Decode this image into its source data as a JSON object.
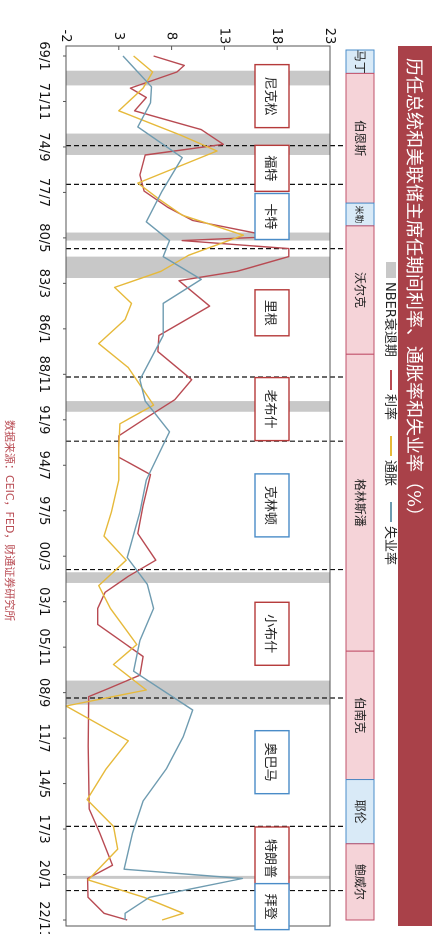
{
  "title": "历任总统和美联储主席任期间利率、通胀率和失业率（%）",
  "legend": [
    {
      "label": "NBER衰退期",
      "color": "#c8c8c8"
    },
    {
      "label": "利率",
      "color": "#b84a52"
    },
    {
      "label": "通胀",
      "color": "#e6b93a"
    },
    {
      "label": "失业率",
      "color": "#6e9bb0"
    }
  ],
  "source": "数据来源：CEIC，FED，财通证券研究所",
  "colors": {
    "rate": "#b84a52",
    "inflation": "#e6b93a",
    "unemployment": "#6e9bb0",
    "recession": "#c8c8c8",
    "title_bar": "#a94149",
    "box_border_red": "#b53a3a",
    "box_border_blue": "#4a8cc8"
  },
  "fed_chairs": [
    {
      "name": "马丁",
      "start": "1969-01",
      "end": "1970-02",
      "color": "blue"
    },
    {
      "name": "伯恩斯",
      "start": "1970-02",
      "end": "1978-03",
      "color": "pink"
    },
    {
      "name": "米勒",
      "start": "1978-03",
      "end": "1979-08",
      "color": "blue"
    },
    {
      "name": "沃尔克",
      "start": "1979-08",
      "end": "1987-08",
      "color": "pink"
    },
    {
      "name": "格林斯潘",
      "start": "1987-08",
      "end": "2006-02",
      "color": "pink"
    },
    {
      "name": "伯南克",
      "start": "2006-02",
      "end": "2014-02",
      "color": "pink"
    },
    {
      "name": "耶伦",
      "start": "2014-02",
      "end": "2018-02",
      "color": "blue"
    },
    {
      "name": "鲍威尔",
      "start": "2018-02",
      "end": "2022-11",
      "color": "pink"
    }
  ],
  "presidents": [
    {
      "name": "尼克松",
      "mid": "1971-07",
      "color": "red"
    },
    {
      "name": "福特",
      "mid": "1976-01",
      "color": "red"
    },
    {
      "name": "卡特",
      "mid": "1979-01",
      "color": "blue"
    },
    {
      "name": "里根",
      "mid": "1985-01",
      "color": "red"
    },
    {
      "name": "老布什",
      "mid": "1991-01",
      "color": "red"
    },
    {
      "name": "克林顿",
      "mid": "1997-01",
      "color": "blue"
    },
    {
      "name": "小布什",
      "mid": "2005-01",
      "color": "red"
    },
    {
      "name": "奥巴马",
      "mid": "2013-01",
      "color": "blue"
    },
    {
      "name": "特朗普",
      "mid": "2019-01",
      "color": "red"
    },
    {
      "name": "拜登",
      "mid": "2022-01",
      "color": "blue"
    }
  ],
  "chart_data": {
    "type": "line",
    "orientation": "rotated 90° clockwise (time runs top to bottom)",
    "x_tick_labels": [
      "69/1",
      "71/11",
      "74/9",
      "77/7",
      "80/5",
      "83/3",
      "86/1",
      "88/11",
      "91/9",
      "94/7",
      "97/5",
      "00/3",
      "03/1",
      "05/11",
      "08/9",
      "11/7",
      "14/5",
      "17/3",
      "20/1",
      "22/11"
    ],
    "x_range": [
      "1969-01",
      "2022-11"
    ],
    "y_tick_labels": [
      "-2",
      "3",
      "8",
      "13",
      "18",
      "23"
    ],
    "ylim": [
      -2,
      23
    ],
    "grid": false,
    "recessions": [
      {
        "start": "1969-12",
        "end": "1970-11"
      },
      {
        "start": "1973-11",
        "end": "1975-03"
      },
      {
        "start": "1980-01",
        "end": "1980-07"
      },
      {
        "start": "1981-07",
        "end": "1982-11"
      },
      {
        "start": "1990-07",
        "end": "1991-03"
      },
      {
        "start": "2001-03",
        "end": "2001-11"
      },
      {
        "start": "2007-12",
        "end": "2009-06"
      },
      {
        "start": "2020-02",
        "end": "2020-04"
      }
    ],
    "term_boundaries": [
      "1974-08",
      "1977-01",
      "1981-01",
      "1989-01",
      "1993-01",
      "2001-01",
      "2009-01",
      "2017-01",
      "2021-01"
    ],
    "series": [
      {
        "name": "利率",
        "x": [
          "1969-01",
          "1969-08",
          "1970-01",
          "1971-01",
          "1971-08",
          "1972-06",
          "1973-08",
          "1974-07",
          "1975-03",
          "1976-06",
          "1977-06",
          "1978-06",
          "1979-04",
          "1980-04",
          "1980-07",
          "1981-01",
          "1981-07",
          "1982-06",
          "1983-01",
          "1984-08",
          "1986-06",
          "1987-06",
          "1989-03",
          "1990-06",
          "1991-06",
          "1992-09",
          "1994-01",
          "1995-02",
          "1997-01",
          "1998-10",
          "2000-06",
          "2001-06",
          "2002-06",
          "2003-06",
          "2004-06",
          "2006-06",
          "2007-08",
          "2008-06",
          "2008-12",
          "2012-01",
          "2015-12",
          "2017-06",
          "2019-06",
          "2020-04",
          "2021-06",
          "2022-06",
          "2022-11"
        ],
        "y": [
          6.3,
          9.2,
          8.5,
          4.1,
          5.6,
          4.5,
          10.8,
          12.9,
          5.5,
          5.0,
          5.4,
          7.6,
          10.0,
          17.6,
          9.0,
          19.1,
          19.1,
          14.2,
          8.7,
          11.6,
          6.8,
          6.7,
          9.9,
          8.3,
          5.9,
          3.0,
          3.0,
          6.0,
          5.3,
          4.8,
          6.5,
          3.9,
          1.7,
          1.0,
          1.0,
          5.3,
          5.0,
          2.0,
          0.15,
          0.1,
          0.2,
          1.2,
          2.4,
          0.05,
          0.08,
          1.6,
          3.8
        ]
      },
      {
        "name": "通胀",
        "x": [
          "1969-01",
          "1970-01",
          "1971-01",
          "1972-06",
          "1973-12",
          "1974-12",
          "1976-12",
          "1977-12",
          "1978-12",
          "1980-03",
          "1981-06",
          "1982-06",
          "1983-06",
          "1984-06",
          "1985-06",
          "1986-12",
          "1988-06",
          "1990-10",
          "1991-12",
          "1993-06",
          "1995-06",
          "1997-06",
          "1998-12",
          "2000-06",
          "2002-01",
          "2003-06",
          "2005-09",
          "2006-12",
          "2008-07",
          "2009-07",
          "2011-09",
          "2013-06",
          "2015-05",
          "2017-01",
          "2018-06",
          "2020-05",
          "2021-06",
          "2022-06",
          "2022-11"
        ],
        "y": [
          4.4,
          6.2,
          5.3,
          3.0,
          8.8,
          12.3,
          4.8,
          6.8,
          9.0,
          14.8,
          9.6,
          7.0,
          2.6,
          4.2,
          3.6,
          1.1,
          3.9,
          6.3,
          3.1,
          3.0,
          3.0,
          2.3,
          1.6,
          3.7,
          1.1,
          2.2,
          4.7,
          2.5,
          5.6,
          -2.0,
          3.9,
          1.8,
          0.0,
          2.5,
          2.9,
          0.1,
          5.4,
          9.1,
          7.1
        ]
      },
      {
        "name": "失业率",
        "x": [
          "1969-01",
          "1970-12",
          "1971-12",
          "1973-06",
          "1975-05",
          "1977-06",
          "1979-05",
          "1980-07",
          "1981-07",
          "1982-12",
          "1984-06",
          "1986-06",
          "1989-03",
          "1990-07",
          "1992-06",
          "1995-06",
          "1997-06",
          "2000-04",
          "2001-12",
          "2003-06",
          "2005-06",
          "2007-05",
          "2009-10",
          "2011-06",
          "2013-06",
          "2015-06",
          "2017-06",
          "2019-09",
          "2020-04",
          "2021-06",
          "2022-06",
          "2022-11"
        ],
        "y": [
          3.4,
          6.1,
          6.0,
          4.8,
          9.0,
          7.1,
          5.6,
          7.8,
          7.2,
          10.8,
          7.2,
          7.2,
          5.0,
          5.5,
          7.8,
          5.6,
          5.0,
          3.8,
          5.7,
          6.3,
          5.0,
          4.4,
          10.0,
          9.1,
          7.5,
          5.3,
          4.3,
          3.5,
          14.7,
          5.9,
          3.6,
          3.6
        ]
      }
    ]
  }
}
